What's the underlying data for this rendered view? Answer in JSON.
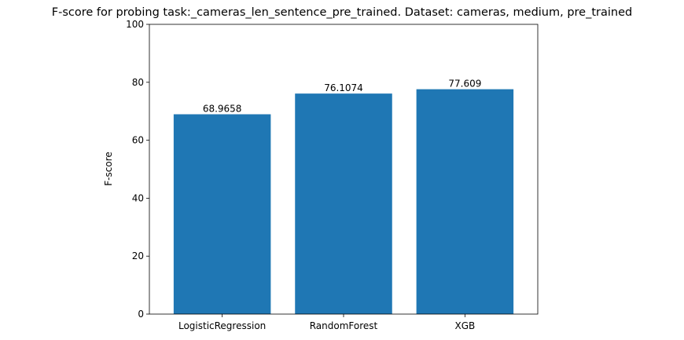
{
  "chart_data": {
    "type": "bar",
    "title": "F-score for probing task:_cameras_len_sentence_pre_trained. Dataset: cameras, medium, pre_trained",
    "xlabel": "",
    "ylabel": "F-score",
    "categories": [
      "LogisticRegression",
      "RandomForest",
      "XGB"
    ],
    "values": [
      68.9658,
      76.1074,
      77.609
    ],
    "value_labels": [
      "68.9658",
      "76.1074",
      "77.609"
    ],
    "ylim": [
      0,
      100
    ],
    "yticks": [
      0,
      20,
      40,
      60,
      80,
      100
    ],
    "bar_color": "#1f77b4",
    "grid": false,
    "legend": "none"
  }
}
